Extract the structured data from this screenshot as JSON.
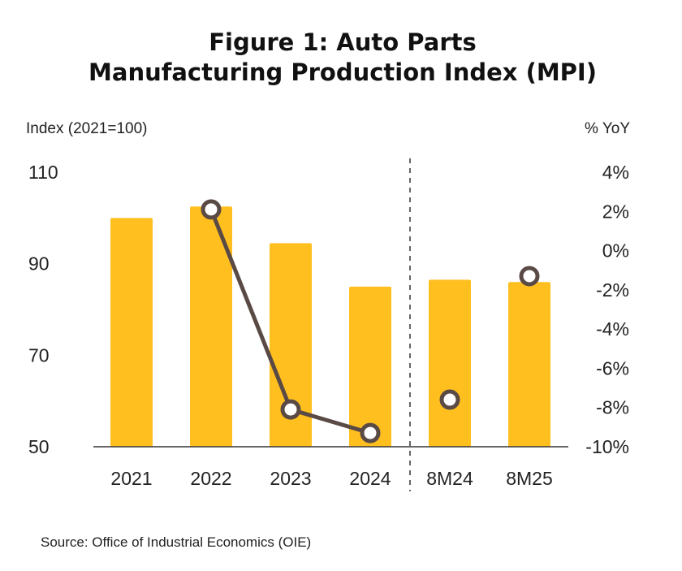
{
  "chart_data": {
    "type": "bar",
    "title_lines": [
      "Figure 1: Auto Parts",
      "Manufacturing Production Index (MPI)"
    ],
    "categories": [
      "2021",
      "2022",
      "2023",
      "2024",
      "8M24",
      "8M25"
    ],
    "left_axis": {
      "label": "Index (2021=100)",
      "ylim": [
        50,
        110
      ],
      "ticks": [
        110,
        90,
        70,
        50
      ],
      "tick_labels": [
        "110",
        "90",
        "70",
        "50"
      ]
    },
    "right_axis": {
      "label": "% YoY",
      "ylim": [
        -10,
        4
      ],
      "ticks": [
        4,
        2,
        0,
        -2,
        -4,
        -6,
        -8,
        -10
      ],
      "tick_labels": [
        "4%",
        "2%",
        "0%",
        "-2%",
        "-4%",
        "-6%",
        "-8%",
        "-10%"
      ]
    },
    "series": [
      {
        "name": "MPI",
        "kind": "bar",
        "axis": "left",
        "color": "#FFBF1F",
        "values": [
          100,
          102.5,
          94.5,
          85,
          86.5,
          86
        ]
      },
      {
        "name": "% YoY",
        "kind": "line",
        "axis": "right",
        "color": "#5A4A45",
        "values": [
          null,
          2.1,
          -8.1,
          -9.3,
          -7.6,
          -1.3
        ],
        "connected": [
          [
            1,
            2
          ],
          [
            2,
            3
          ]
        ]
      }
    ],
    "divider_after_category": "2024",
    "source": "Source: Office of Industrial Economics (OIE)"
  }
}
